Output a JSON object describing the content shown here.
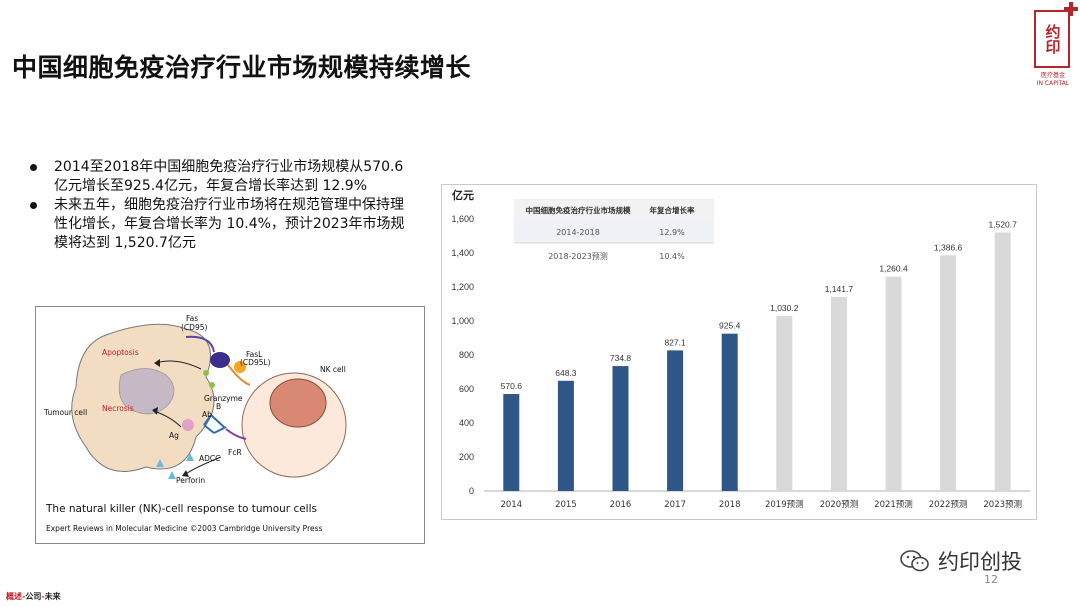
{
  "page": {
    "title": "中国细胞免疫治疗行业市场规模持续增长",
    "page_number": "12",
    "footer": {
      "part1": "概述",
      "sep": "-",
      "part2": "公司",
      "part3": "未来"
    },
    "wechat_label": "约印创投",
    "logo": {
      "text": "约印",
      "sub1": "医疗基金",
      "sub2": "IN CAPITAL"
    }
  },
  "bullets": [
    "2014至2018年中国细胞免疫治疗行业市场规模从570.6亿元增长至925.4亿元，年复合增长率达到 12.9%",
    "未来五年，细胞免疫治疗行业市场将在规范管理中保持理性化增长，年复合增长率为 10.4%，预计2023年市场规模将达到 1,520.7亿元"
  ],
  "figure": {
    "caption": "The natural killer (NK)-cell response to tumour cells",
    "credit": "Expert Reviews in Molecular Medicine ©2003 Cambridge University Press",
    "labels": {
      "fas": "Fas",
      "cd95": "(CD95)",
      "fasl": "FasL",
      "cd95l": "(CD95L)",
      "nk_cell": "NK cell",
      "apoptosis": "Apoptosis",
      "necrosis": "Necrosis",
      "tumour_cell": "Tumour cell",
      "granzyme": "Granzyme",
      "granzyme_b": "B",
      "ab": "Ab",
      "ag": "Ag",
      "adcc": "ADCC",
      "fcr": "FcR",
      "perforin": "Perforin"
    }
  },
  "chart_data": {
    "type": "bar",
    "unit_label": "亿元",
    "categories": [
      "2014",
      "2015",
      "2016",
      "2017",
      "2018",
      "2019预测",
      "2020预测",
      "2021预测",
      "2022预测",
      "2023预测"
    ],
    "values": [
      570.6,
      648.3,
      734.8,
      827.1,
      925.4,
      1030.2,
      1141.7,
      1260.4,
      1386.6,
      1520.7
    ],
    "value_labels": [
      "570.6",
      "648.3",
      "734.8",
      "827.1",
      "925.4",
      "1,030.2",
      "1,141.7",
      "1,260.4",
      "1,386.6",
      "1,520.7"
    ],
    "forecast_from_index": 5,
    "ylim": [
      0,
      1600
    ],
    "yticks": [
      "0",
      "200",
      "400",
      "600",
      "800",
      "1,000",
      "1,200",
      "1,400",
      "1,600"
    ],
    "colors": {
      "actual": "#2e5686",
      "forecast": "#d9d9d9"
    },
    "grid": false,
    "table": {
      "headers": [
        "中国细胞免疫治疗行业市场规模",
        "年复合增长率"
      ],
      "rows": [
        [
          "2014-2018",
          "12.9%"
        ],
        [
          "2018-2023预测",
          "10.4%"
        ]
      ]
    }
  }
}
